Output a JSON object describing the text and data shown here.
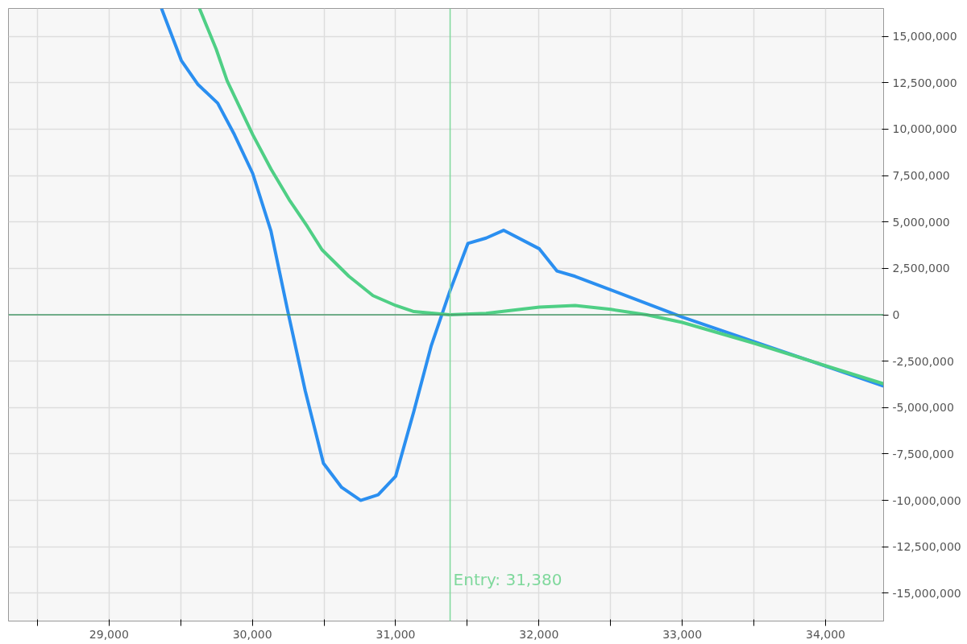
{
  "chart_data": {
    "type": "line",
    "x": [
      29366,
      29504,
      29621,
      29758,
      29875,
      30003,
      30130,
      30247,
      30369,
      30496,
      30623,
      30756,
      30878,
      31000,
      31127,
      31249,
      31377,
      31504,
      31631,
      31753,
      32003,
      32125,
      32252,
      33000,
      34405
    ],
    "series": [
      {
        "color": "#2b8ff0",
        "values": [
          16500000.0,
          13700000.0,
          12400000.0,
          11400000.0,
          9700000.0,
          7600000.0,
          4500000.0,
          200000.0,
          -4100000.0,
          -8000000.0,
          -9300000.0,
          -10000000.0,
          -9700000.0,
          -8700000.0,
          -5200000.0,
          -1650000.0,
          1240000.0,
          3840000.0,
          4130000.0,
          4550000.0,
          3550000.0,
          2360000.0,
          2070000.0,
          -120000.0,
          -3840000.0
        ]
      },
      {
        "color": "#4fcf85",
        "x": [
          29631,
          29748,
          29824,
          30003,
          30130,
          30257,
          30384,
          30486,
          30674,
          30842,
          31000,
          31127,
          31377,
          31631,
          32003,
          32252,
          32501,
          32751,
          33000,
          33499,
          34405
        ],
        "values": [
          16500000.0,
          14300000.0,
          12600000.0,
          9700000.0,
          7850000.0,
          6200000.0,
          4750000.0,
          3500000.0,
          2070000.0,
          1030000.0,
          500000.0,
          170000.0,
          0,
          80000.0,
          410000.0,
          500000.0,
          290000.0,
          0,
          -410000.0,
          -1530000.0,
          -3720000.0
        ]
      }
    ],
    "xlim": [
      28298,
      34405
    ],
    "ylim": [
      -16500000,
      16500000
    ],
    "xticks": [
      {
        "value": 28500,
        "label": null
      },
      {
        "value": 29000,
        "label": "29,000"
      },
      {
        "value": 29500,
        "label": null
      },
      {
        "value": 30000,
        "label": "30,000"
      },
      {
        "value": 30500,
        "label": null
      },
      {
        "value": 31000,
        "label": "31,000"
      },
      {
        "value": 31500,
        "label": null
      },
      {
        "value": 32000,
        "label": "32,000"
      },
      {
        "value": 32500,
        "label": null
      },
      {
        "value": 33000,
        "label": "33,000"
      },
      {
        "value": 33500,
        "label": null
      },
      {
        "value": 34000,
        "label": "34,000"
      }
    ],
    "yticks": [
      {
        "value": -15000000,
        "label": "-15,000,000"
      },
      {
        "value": -12500000,
        "label": "-12,500,000"
      },
      {
        "value": -10000000,
        "label": "-10,000,000"
      },
      {
        "value": -7500000,
        "label": "-7,500,000"
      },
      {
        "value": -5000000,
        "label": "-5,000,000"
      },
      {
        "value": -2500000,
        "label": "-2,500,000"
      },
      {
        "value": 0,
        "label": "0"
      },
      {
        "value": 2500000,
        "label": "2,500,000"
      },
      {
        "value": 5000000,
        "label": "5,000,000"
      },
      {
        "value": 7500000,
        "label": "7,500,000"
      },
      {
        "value": 10000000,
        "label": "10,000,000"
      },
      {
        "value": 12500000,
        "label": "12,500,000"
      },
      {
        "value": 15000000,
        "label": "15,000,000"
      }
    ],
    "grid": true,
    "marker": "none",
    "line_style": "solid",
    "ref_lines": [
      {
        "axis": "x",
        "value": 31380,
        "label": "Entry: 31,380",
        "color": "#7fd89c"
      },
      {
        "axis": "y",
        "value": 0,
        "color": "#4a9a6a"
      }
    ]
  }
}
